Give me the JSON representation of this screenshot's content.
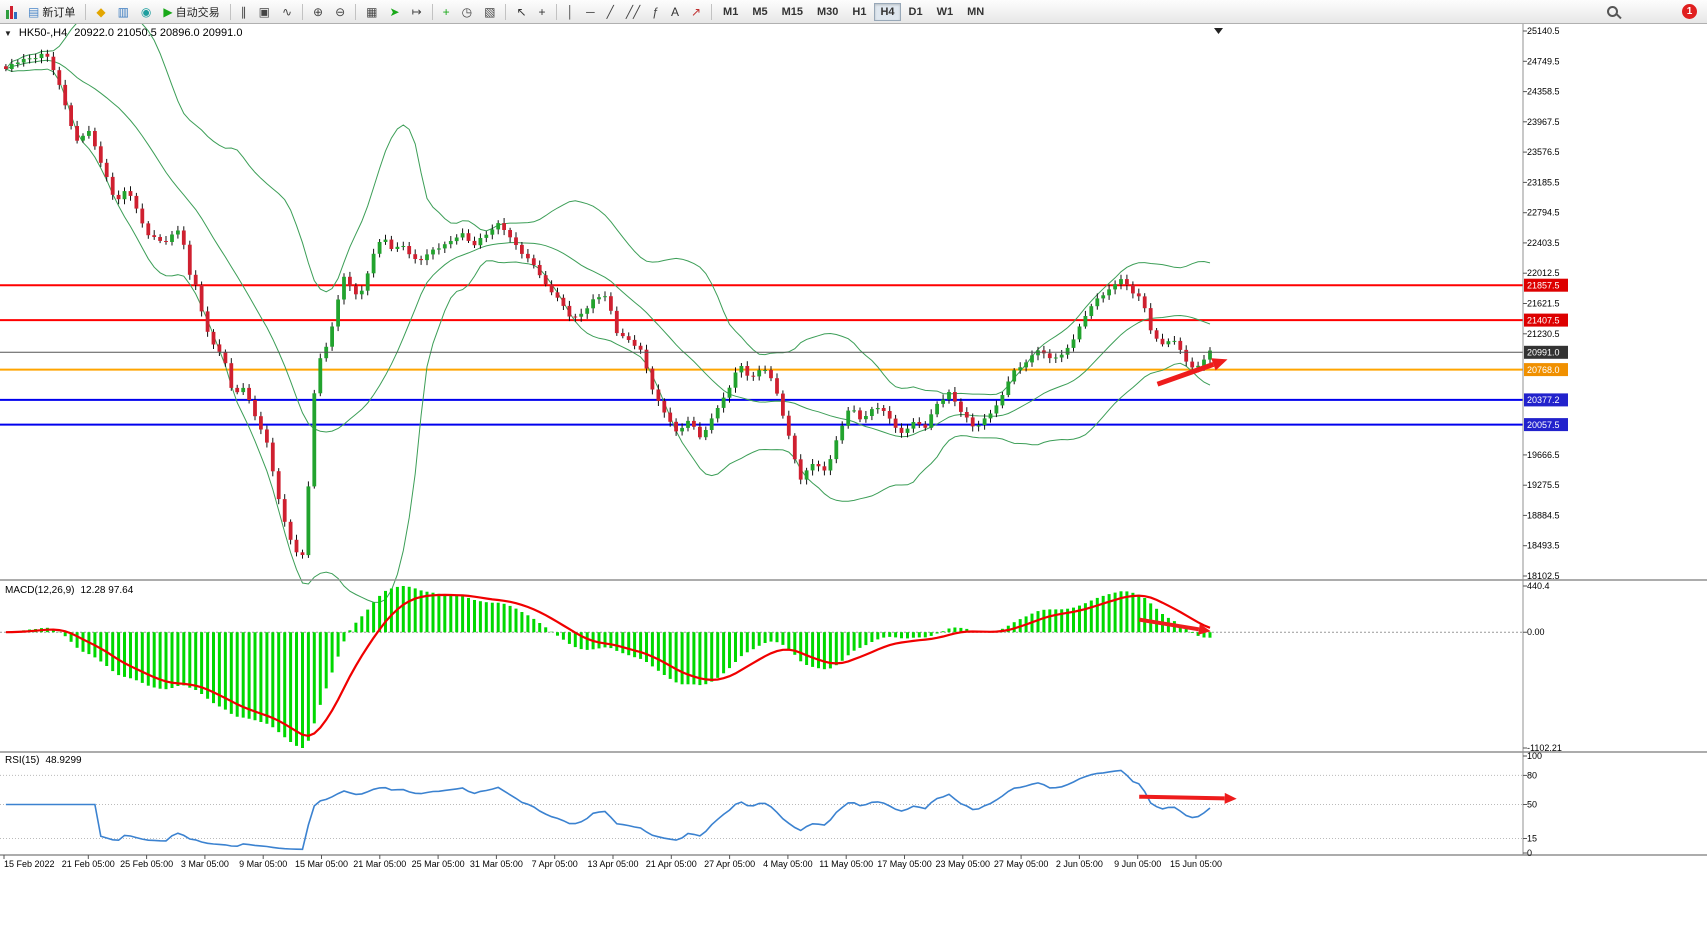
{
  "toolbar": {
    "notification_count": "1",
    "items": [
      {
        "type": "button",
        "name": "new-order-button",
        "glyph": "▤",
        "glyph_color": "#4a86c8",
        "label": "新订单"
      },
      {
        "type": "sep"
      },
      {
        "type": "button",
        "name": "symbols-button",
        "glyph": "◆",
        "glyph_color": "#e3a600"
      },
      {
        "type": "button",
        "name": "market-watch-button",
        "glyph": "▥",
        "glyph_color": "#3a7abf"
      },
      {
        "type": "button",
        "name": "data-window-button",
        "glyph": "◉",
        "glyph_color": "#1f9f9f"
      },
      {
        "type": "button",
        "name": "autotrading-button",
        "glyph": "▶",
        "glyph_color": "#18a818",
        "label": "自动交易"
      },
      {
        "type": "sep"
      },
      {
        "type": "button",
        "name": "bar-chart-button",
        "glyph": "∥",
        "glyph_color": "#444444"
      },
      {
        "type": "button",
        "name": "candlestick-chart-button",
        "glyph": "▣",
        "glyph_color": "#444444"
      },
      {
        "type": "button",
        "name": "line-chart-button",
        "glyph": "∿",
        "glyph_color": "#444444"
      },
      {
        "type": "sep"
      },
      {
        "type": "button",
        "name": "zoom-in-button",
        "glyph": "⊕",
        "glyph_color": "#444444"
      },
      {
        "type": "button",
        "name": "zoom-out-button",
        "glyph": "⊖",
        "glyph_color": "#444444"
      },
      {
        "type": "sep"
      },
      {
        "type": "button",
        "name": "tile-windows-button",
        "glyph": "▦",
        "glyph_color": "#444444"
      },
      {
        "type": "button",
        "name": "auto-scroll-button",
        "glyph": "➤",
        "glyph_color": "#18a818"
      },
      {
        "type": "button",
        "name": "chart-shift-button",
        "glyph": "↦",
        "glyph_color": "#444444"
      },
      {
        "type": "sep"
      },
      {
        "type": "button",
        "name": "indicators-button",
        "glyph": "+",
        "glyph_color": "#18a818"
      },
      {
        "type": "button",
        "name": "periods-button",
        "glyph": "◷",
        "glyph_color": "#444444"
      },
      {
        "type": "button",
        "name": "templates-button",
        "glyph": "▧",
        "glyph_color": "#444444"
      },
      {
        "type": "sep"
      },
      {
        "type": "button",
        "name": "cursor-button",
        "glyph": "↖",
        "glyph_color": "#333333"
      },
      {
        "type": "button",
        "name": "crosshair-button",
        "glyph": "+",
        "glyph_color": "#333333"
      },
      {
        "type": "sep"
      },
      {
        "type": "button",
        "name": "vertical-line-button",
        "glyph": "│",
        "glyph_color": "#444444"
      },
      {
        "type": "button",
        "name": "horizontal-line-button",
        "glyph": "─",
        "glyph_color": "#444444"
      },
      {
        "type": "button",
        "name": "trendline-button",
        "glyph": "╱",
        "glyph_color": "#444444"
      },
      {
        "type": "button",
        "name": "channel-button",
        "glyph": "╱╱",
        "glyph_color": "#444444"
      },
      {
        "type": "button",
        "name": "fibonacci-button",
        "glyph": "ƒ",
        "glyph_color": "#444444"
      },
      {
        "type": "button",
        "name": "text-button",
        "glyph": "A",
        "glyph_color": "#333333"
      },
      {
        "type": "button",
        "name": "arrows-tool-button",
        "glyph": "↗",
        "glyph_color": "#c03030"
      },
      {
        "type": "sep"
      },
      {
        "type": "tf",
        "label": "M1"
      },
      {
        "type": "tf",
        "label": "M5"
      },
      {
        "type": "tf",
        "label": "M15"
      },
      {
        "type": "tf",
        "label": "M30"
      },
      {
        "type": "tf",
        "label": "H1"
      },
      {
        "type": "tf",
        "label": "H4",
        "active": true
      },
      {
        "type": "tf",
        "label": "D1"
      },
      {
        "type": "tf",
        "label": "W1"
      },
      {
        "type": "tf",
        "label": "MN"
      }
    ]
  },
  "chart": {
    "collapse_icon": "▼",
    "title_symbol": "HK50-,H4",
    "title_ohlc": "20922.0 21050.5 20896.0 20991.0",
    "macd_name": "MACD(12,26,9)",
    "macd_values": "12.28 97.64",
    "rsi_name": "RSI(15)",
    "rsi_value": "48.9299"
  },
  "colors": {
    "up": "#22a32e",
    "down": "#cf2030",
    "wick": "#111111",
    "bollinger": "#3c9e57",
    "macd_hist": "#00d800",
    "macd_signal": "#f00000",
    "rsi": "#3b82d0",
    "arrow": "#ee1c1c",
    "red_line": "#ff0000",
    "blue_line": "#0000ee",
    "orange_line": "#ffa500"
  },
  "chart_data": {
    "type": "candlestick",
    "symbol": "HK50-",
    "period": "H4",
    "ohlc_display": {
      "open": "20922.0",
      "high": "21050.5",
      "low": "20896.0",
      "close": "20991.0"
    },
    "num_candles": 204,
    "price_axis": {
      "min": 18102.5,
      "max": 25140.5,
      "ticks": [
        25140.5,
        24749.5,
        24358.5,
        23967.5,
        23576.5,
        23185.5,
        22794.5,
        22403.5,
        22012.5,
        21621.5,
        21230.5,
        19666.5,
        19275.5,
        18884.5,
        18493.5,
        18102.5
      ]
    },
    "hlines": [
      {
        "price": 21857.5,
        "label": "21857.5",
        "color": "#ff0000",
        "width": 2,
        "tag_bg": "#dd0000"
      },
      {
        "price": 21407.5,
        "label": "21407.5",
        "color": "#ff0000",
        "width": 2,
        "tag_bg": "#dd0000"
      },
      {
        "price": 20991.0,
        "label": "20991.0",
        "color": "#555555",
        "width": 1,
        "tag_bg": "#333333",
        "front": true
      },
      {
        "price": 20768.0,
        "label": "20768.0",
        "color": "#ffa500",
        "width": 2,
        "tag_bg": "#f09000"
      },
      {
        "price": 20377.2,
        "label": "20377.2",
        "color": "#0000ee",
        "width": 2,
        "tag_bg": "#2222cc"
      },
      {
        "price": 20057.5,
        "label": "20057.5",
        "color": "#0000ee",
        "width": 2,
        "tag_bg": "#2222cc"
      }
    ],
    "close_anchors": [
      [
        0.0,
        24650
      ],
      [
        0.017,
        24780
      ],
      [
        0.033,
        24870
      ],
      [
        0.04,
        24600
      ],
      [
        0.048,
        24250
      ],
      [
        0.058,
        23720
      ],
      [
        0.068,
        23880
      ],
      [
        0.079,
        23420
      ],
      [
        0.091,
        22950
      ],
      [
        0.101,
        23120
      ],
      [
        0.116,
        22520
      ],
      [
        0.132,
        22430
      ],
      [
        0.145,
        22580
      ],
      [
        0.153,
        21950
      ],
      [
        0.158,
        21880
      ],
      [
        0.165,
        21350
      ],
      [
        0.174,
        21050
      ],
      [
        0.182,
        20850
      ],
      [
        0.189,
        20420
      ],
      [
        0.198,
        20580
      ],
      [
        0.207,
        20150
      ],
      [
        0.216,
        19850
      ],
      [
        0.224,
        19280
      ],
      [
        0.233,
        18720
      ],
      [
        0.241,
        18420
      ],
      [
        0.246,
        18300
      ],
      [
        0.25,
        18850
      ],
      [
        0.254,
        20150
      ],
      [
        0.259,
        20850
      ],
      [
        0.265,
        21050
      ],
      [
        0.272,
        21380
      ],
      [
        0.28,
        21980
      ],
      [
        0.289,
        21720
      ],
      [
        0.297,
        21820
      ],
      [
        0.305,
        22280
      ],
      [
        0.313,
        22470
      ],
      [
        0.321,
        22300
      ],
      [
        0.33,
        22380
      ],
      [
        0.342,
        22160
      ],
      [
        0.354,
        22280
      ],
      [
        0.367,
        22420
      ],
      [
        0.378,
        22540
      ],
      [
        0.388,
        22340
      ],
      [
        0.398,
        22520
      ],
      [
        0.41,
        22680
      ],
      [
        0.419,
        22440
      ],
      [
        0.429,
        22260
      ],
      [
        0.439,
        22140
      ],
      [
        0.449,
        21830
      ],
      [
        0.46,
        21640
      ],
      [
        0.47,
        21440
      ],
      [
        0.48,
        21520
      ],
      [
        0.49,
        21680
      ],
      [
        0.499,
        21720
      ],
      [
        0.507,
        21280
      ],
      [
        0.518,
        21130
      ],
      [
        0.528,
        20980
      ],
      [
        0.538,
        20480
      ],
      [
        0.547,
        20230
      ],
      [
        0.557,
        19930
      ],
      [
        0.568,
        20120
      ],
      [
        0.578,
        19890
      ],
      [
        0.587,
        20160
      ],
      [
        0.598,
        20420
      ],
      [
        0.609,
        20870
      ],
      [
        0.619,
        20640
      ],
      [
        0.629,
        20790
      ],
      [
        0.639,
        20560
      ],
      [
        0.65,
        19930
      ],
      [
        0.66,
        19320
      ],
      [
        0.67,
        19560
      ],
      [
        0.681,
        19480
      ],
      [
        0.691,
        19890
      ],
      [
        0.701,
        20280
      ],
      [
        0.711,
        20130
      ],
      [
        0.722,
        20310
      ],
      [
        0.733,
        20140
      ],
      [
        0.743,
        19940
      ],
      [
        0.753,
        20110
      ],
      [
        0.763,
        19990
      ],
      [
        0.774,
        20340
      ],
      [
        0.784,
        20500
      ],
      [
        0.794,
        20190
      ],
      [
        0.805,
        19990
      ],
      [
        0.816,
        20210
      ],
      [
        0.825,
        20340
      ],
      [
        0.835,
        20690
      ],
      [
        0.846,
        20860
      ],
      [
        0.857,
        21040
      ],
      [
        0.867,
        20890
      ],
      [
        0.877,
        20950
      ],
      [
        0.888,
        21220
      ],
      [
        0.898,
        21500
      ],
      [
        0.908,
        21690
      ],
      [
        0.918,
        21840
      ],
      [
        0.926,
        21960
      ],
      [
        0.935,
        21740
      ],
      [
        0.943,
        21690
      ],
      [
        0.951,
        21290
      ],
      [
        0.96,
        21090
      ],
      [
        0.968,
        21160
      ],
      [
        0.976,
        20990
      ],
      [
        0.984,
        20790
      ],
      [
        0.992,
        20860
      ],
      [
        1.0,
        20991
      ]
    ],
    "bollinger": {
      "period": 20,
      "deviation": 2
    },
    "macd": {
      "fast": 12,
      "slow": 26,
      "signal": 9,
      "main_value": 12.28,
      "signal_value": 97.64,
      "max": 440.4,
      "min": -1102.21,
      "axis": [
        "440.4",
        "0.00",
        "-1102.21"
      ]
    },
    "rsi": {
      "period": 15,
      "value": 48.9299,
      "levels": [
        100,
        80,
        50,
        15,
        0
      ],
      "dotted": [
        80,
        50,
        15
      ]
    },
    "time_labels": [
      "15 Feb 2022",
      "21 Feb 05:00",
      "25 Feb 05:00",
      "3 Mar 05:00",
      "9 Mar 05:00",
      "15 Mar 05:00",
      "21 Mar 05:00",
      "25 Mar 05:00",
      "31 Mar 05:00",
      "7 Apr 05:00",
      "13 Apr 05:00",
      "21 Apr 05:00",
      "27 Apr 05:00",
      "4 May 05:00",
      "11 May 05:00",
      "17 May 05:00",
      "23 May 05:00",
      "27 May 05:00",
      "2 Jun 05:00",
      "9 Jun 05:00",
      "15 Jun 05:00"
    ],
    "annotations": [
      {
        "panel": "price",
        "x1": 0.76,
        "x2": 0.806,
        "v1": 20580,
        "v2": 20900
      },
      {
        "panel": "macd",
        "x1": 0.748,
        "x2": 0.795,
        "v1": 120,
        "v2": 10
      },
      {
        "panel": "rsi",
        "x1": 0.748,
        "x2": 0.812,
        "v1": 58,
        "v2": 56
      }
    ]
  }
}
